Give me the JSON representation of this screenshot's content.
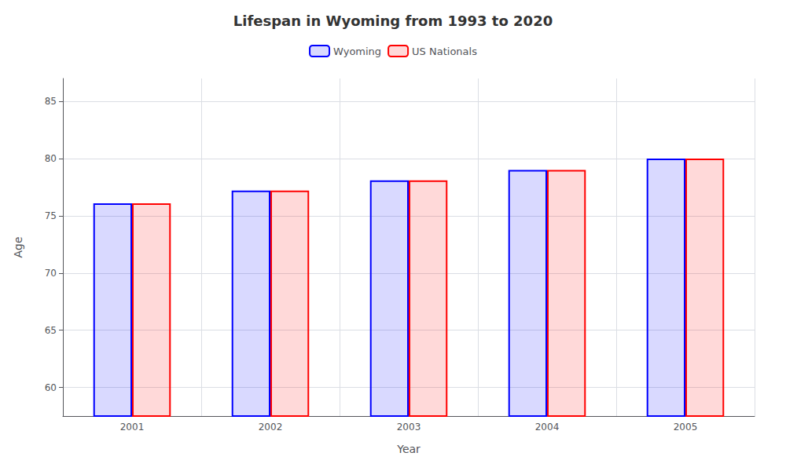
{
  "chart_data": {
    "type": "bar",
    "title": "Lifespan in Wyoming from 1993 to 2020",
    "xlabel": "Year",
    "ylabel": "Age",
    "categories": [
      "2001",
      "2002",
      "2003",
      "2004",
      "2005"
    ],
    "series": [
      {
        "name": "Wyoming",
        "color": "#0000FF",
        "values": [
          76.1,
          77.2,
          78.1,
          79.0,
          80.0
        ]
      },
      {
        "name": "US Nationals",
        "color": "#FF0000",
        "values": [
          76.1,
          77.2,
          78.1,
          79.0,
          80.0
        ]
      }
    ],
    "ylim": [
      57.5,
      87
    ],
    "yticks": [
      60,
      65,
      70,
      75,
      80,
      85
    ],
    "grid": true,
    "legend": "top"
  }
}
